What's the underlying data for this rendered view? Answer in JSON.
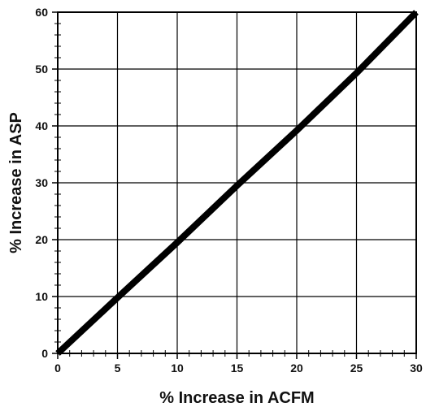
{
  "chart_data": {
    "type": "line",
    "title": "",
    "xlabel": "% Increase in ACFM",
    "ylabel": "% Increase in ASP",
    "xlim": [
      0,
      30
    ],
    "ylim": [
      0,
      60
    ],
    "x_ticks": [
      0,
      5,
      10,
      15,
      20,
      25,
      30
    ],
    "y_ticks": [
      0,
      10,
      20,
      30,
      40,
      50,
      60
    ],
    "grid": true,
    "legend": "none",
    "line_color": "#000000",
    "series": [
      {
        "x": [
          0,
          5,
          10,
          15,
          20,
          25,
          30
        ],
        "y": [
          0,
          9.8,
          19.5,
          29.5,
          39.2,
          49.3,
          60
        ]
      }
    ]
  }
}
